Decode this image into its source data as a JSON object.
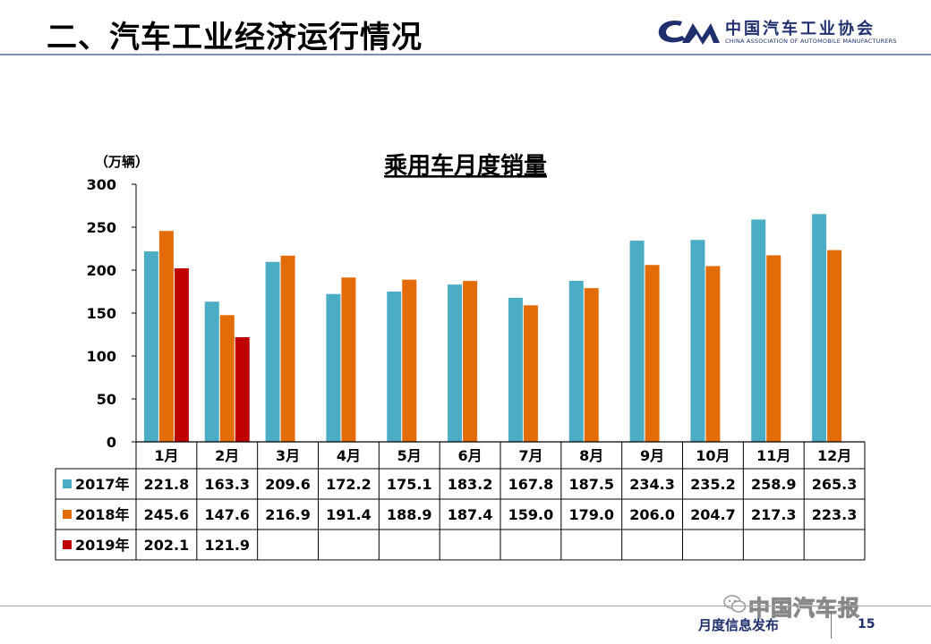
{
  "page": {
    "title": "二、汽车工业经济运行情况",
    "logo_cn": "中国汽车工业协会",
    "logo_en": "CHINA ASSOCIATION OF AUTOMOBILE MANUFACTURERS",
    "footer_label": "月度信息发布",
    "page_number": "15",
    "watermark": "中国汽车报"
  },
  "chart_data": {
    "type": "bar",
    "title": "乘用车月度销量",
    "ylabel": "（万辆）",
    "ylim": [
      0,
      300
    ],
    "yticks": [
      0,
      50,
      100,
      150,
      200,
      250,
      300
    ],
    "categories": [
      "1月",
      "2月",
      "3月",
      "4月",
      "5月",
      "6月",
      "7月",
      "8月",
      "9月",
      "10月",
      "11月",
      "12月"
    ],
    "series": [
      {
        "name": "2017年",
        "color": "#4bacc6",
        "values": [
          221.8,
          163.3,
          209.6,
          172.2,
          175.1,
          183.2,
          167.8,
          187.5,
          234.3,
          235.2,
          258.9,
          265.3
        ]
      },
      {
        "name": "2018年",
        "color": "#e36c09",
        "values": [
          245.6,
          147.6,
          216.9,
          191.4,
          188.9,
          187.4,
          159.0,
          179.0,
          206.0,
          204.7,
          217.3,
          223.3
        ]
      },
      {
        "name": "2019年",
        "color": "#c00000",
        "values": [
          202.1,
          121.9,
          null,
          null,
          null,
          null,
          null,
          null,
          null,
          null,
          null,
          null
        ]
      }
    ],
    "table_values": [
      [
        "221.8",
        "163.3",
        "209.6",
        "172.2",
        "175.1",
        "183.2",
        "167.8",
        "187.5",
        "234.3",
        "235.2",
        "258.9",
        "265.3"
      ],
      [
        "245.6",
        "147.6",
        "216.9",
        "191.4",
        "188.9",
        "187.4",
        "159.0",
        "179.0",
        "206.0",
        "204.7",
        "217.3",
        "223.3"
      ],
      [
        "202.1",
        "121.9",
        "",
        "",
        "",
        "",
        "",
        "",
        "",
        "",
        "",
        ""
      ]
    ],
    "grid": false,
    "legend": "data-table"
  }
}
